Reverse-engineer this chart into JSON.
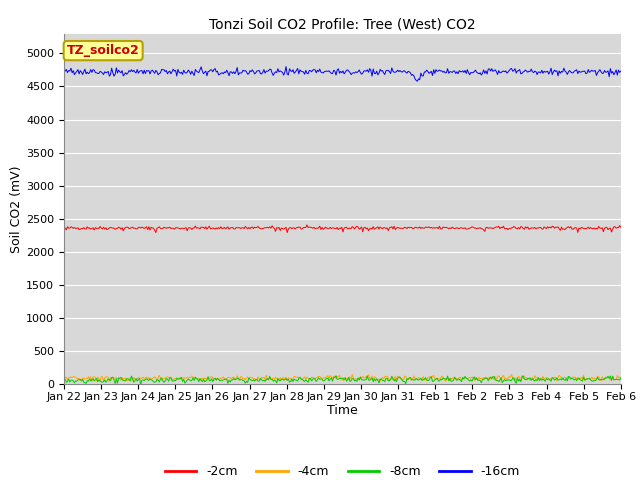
{
  "title": "Tonzi Soil CO2 Profile: Tree (West) CO2",
  "xlabel": "Time",
  "ylabel": "Soil CO2 (mV)",
  "background_color": "#d8d8d8",
  "series": {
    "-2cm": {
      "color": "#ff0000",
      "base": 2360,
      "noise": 12,
      "trend": 0
    },
    "-4cm": {
      "color": "#ffa500",
      "base": 85,
      "noise": 18,
      "trend": 0.28
    },
    "-8cm": {
      "color": "#00cc00",
      "base": 60,
      "noise": 22,
      "trend": 0.75
    },
    "-16cm": {
      "color": "#0000ff",
      "base": 4720,
      "noise": 25,
      "trend": 0
    }
  },
  "x_tick_labels": [
    "Jan 22",
    "Jan 23",
    "Jan 24",
    "Jan 25",
    "Jan 26",
    "Jan 27",
    "Jan 28",
    "Jan 29",
    "Jan 30",
    "Jan 31",
    "Feb 1",
    "Feb 2",
    "Feb 3",
    "Feb 4",
    "Feb 5",
    "Feb 6"
  ],
  "ylim": [
    0,
    5300
  ],
  "yticks": [
    0,
    500,
    1000,
    1500,
    2000,
    2500,
    3000,
    3500,
    4000,
    4500,
    5000
  ],
  "n_points": 16,
  "legend_label": "TZ_soilco2",
  "legend_bg": "#ffff99",
  "legend_border": "#b8a000",
  "title_fontsize": 10,
  "axis_fontsize": 9,
  "tick_fontsize": 8
}
